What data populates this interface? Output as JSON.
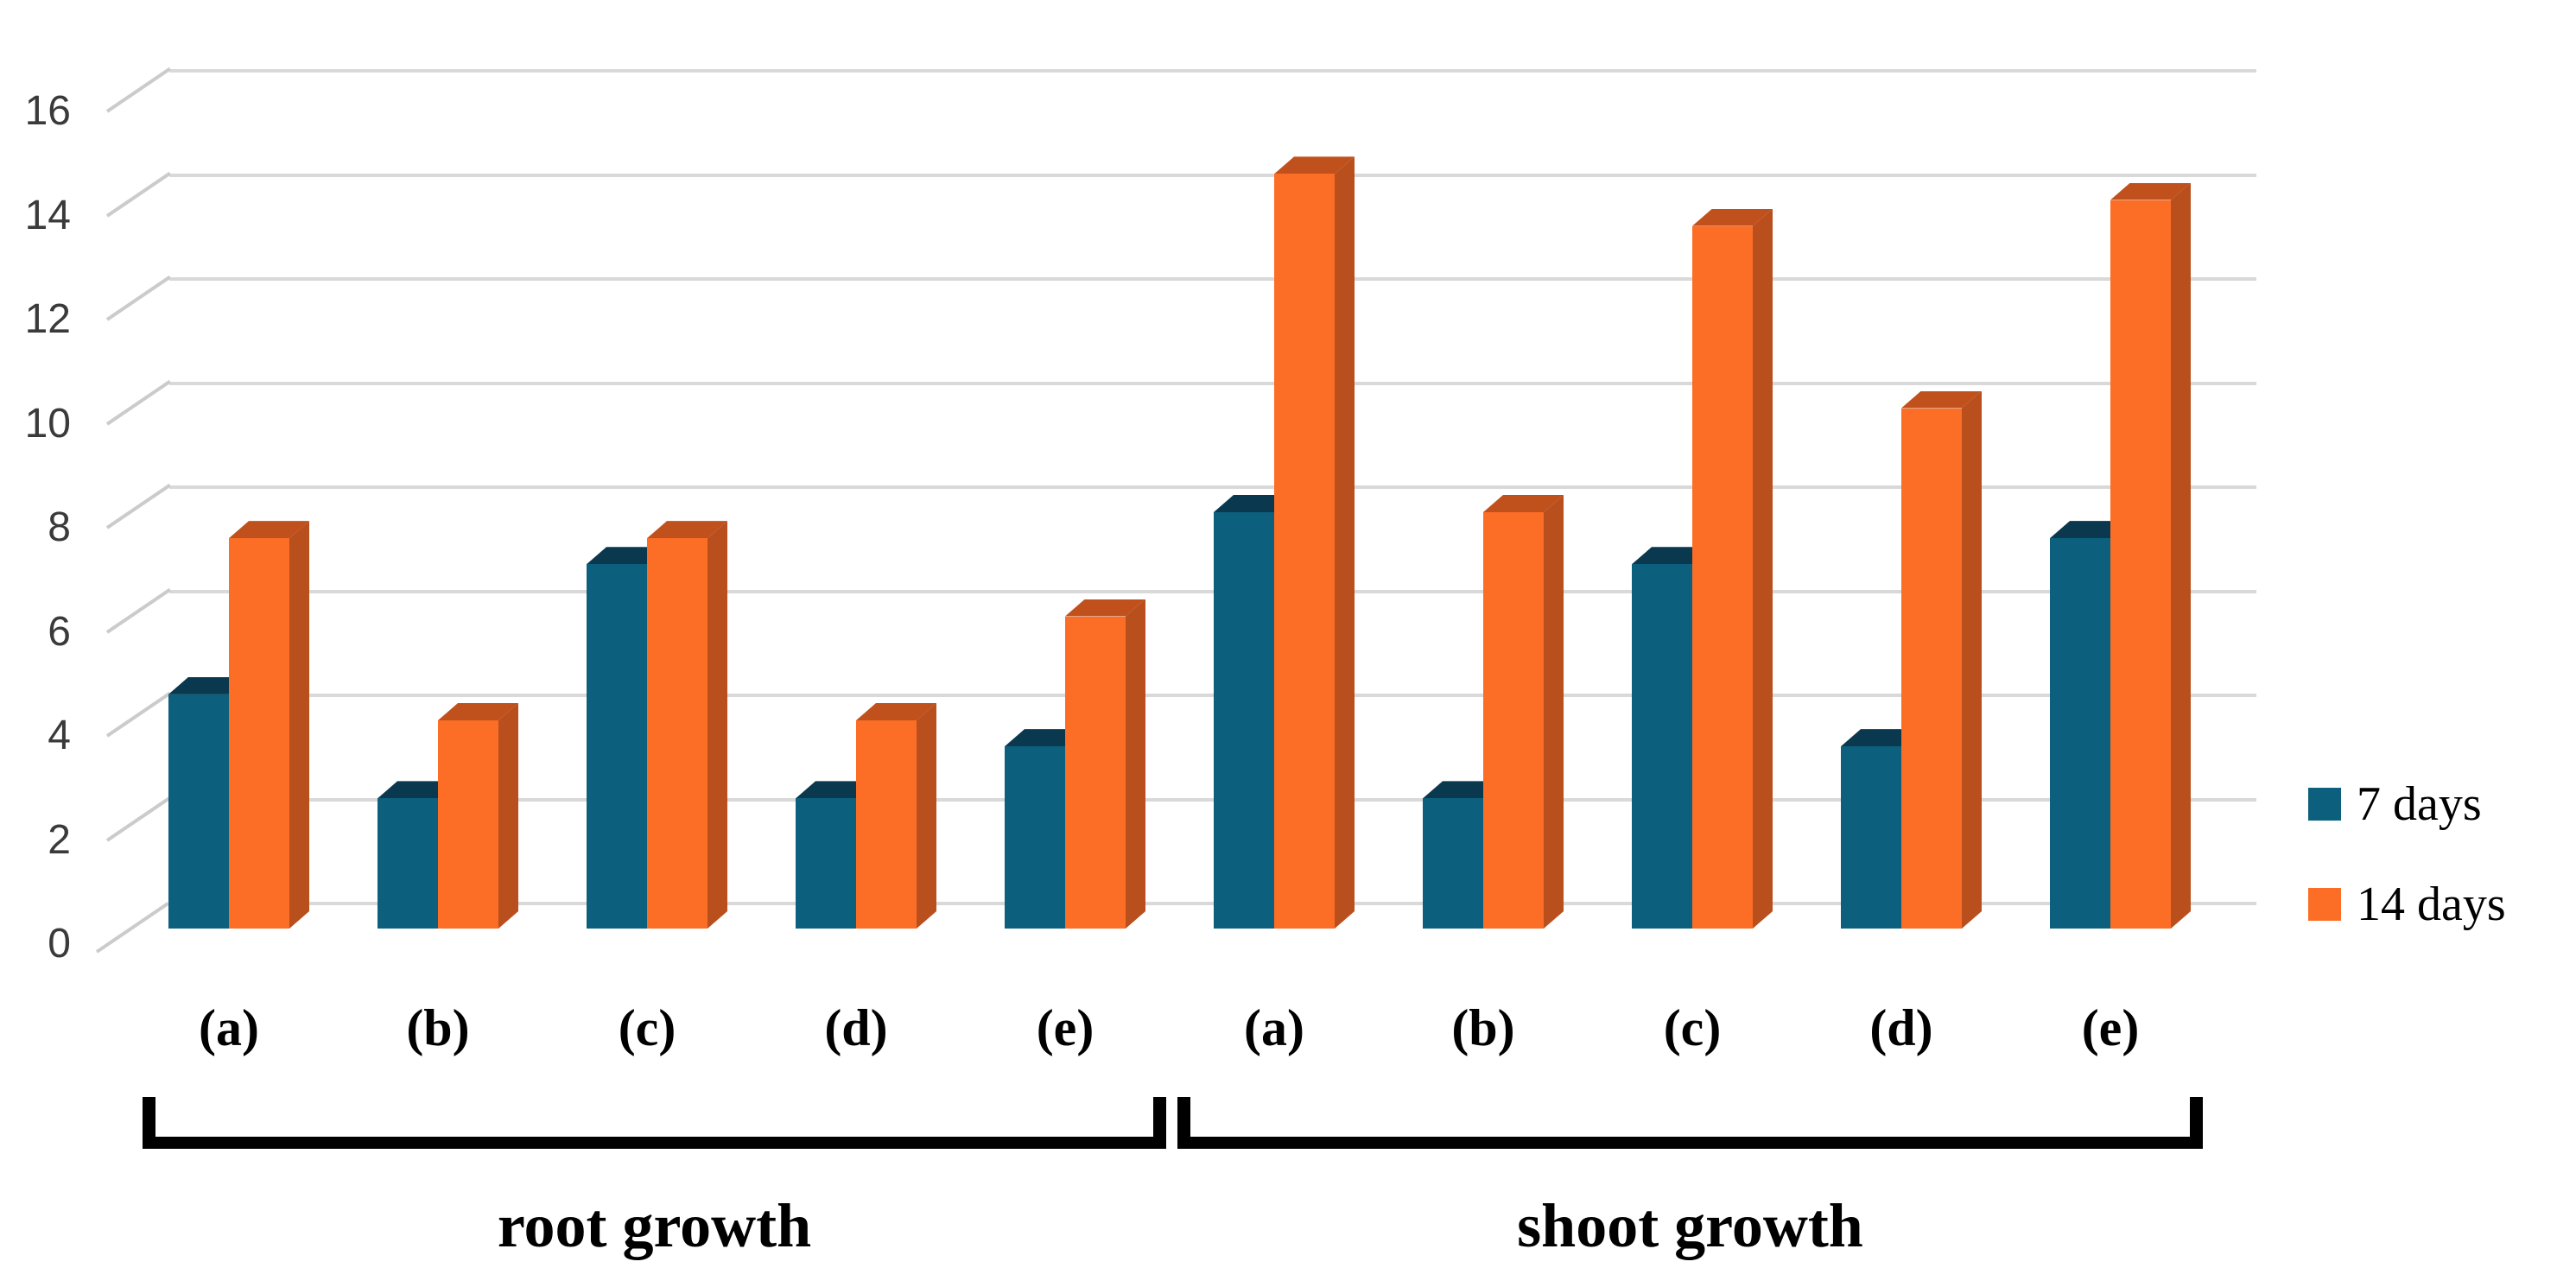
{
  "figure": {
    "background": "#ffffff",
    "section_labels": {
      "root": "root growth",
      "shoot": "shoot growth"
    },
    "legend": [
      {
        "label": "7 days",
        "color": "#0C607D"
      },
      {
        "label": "14 days",
        "color": "#FC6D26"
      }
    ]
  },
  "chart_data": {
    "type": "bar",
    "style": "3d-clustered-column",
    "title": "",
    "xlabel": "",
    "ylabel": "",
    "ylim": [
      0,
      16
    ],
    "yticks": [
      0,
      2,
      4,
      6,
      8,
      10,
      12,
      14,
      16
    ],
    "grid": true,
    "legend_position": "right",
    "categories": [
      "(a)",
      "(b)",
      "(c)",
      "(d)",
      "(e)",
      "(a)",
      "(b)",
      "(c)",
      "(d)",
      "(e)"
    ],
    "groups": [
      {
        "section": "root growth",
        "categories": [
          "(a)",
          "(b)",
          "(c)",
          "(d)",
          "(e)"
        ]
      },
      {
        "section": "shoot growth",
        "categories": [
          "(a)",
          "(b)",
          "(c)",
          "(d)",
          "(e)"
        ]
      }
    ],
    "series": [
      {
        "name": "7 days",
        "colors": {
          "front": "#0C607D",
          "top": "#0A384F",
          "side": "#0B4B63"
        },
        "values": [
          4.5,
          2.5,
          7,
          2.5,
          3.5,
          8,
          2.5,
          7,
          3.5,
          7.5
        ]
      },
      {
        "name": "14 days",
        "colors": {
          "front": "#FC6D26",
          "top": "#C0511C",
          "side": "#B94F1D"
        },
        "values": [
          7.5,
          4,
          7.5,
          4,
          6,
          14.5,
          8,
          13.5,
          10,
          14
        ]
      }
    ],
    "colors": {
      "gridline": "#D9D9D9",
      "axis_text": "#3A3A3A",
      "bracket": "#000000",
      "text": "#000000"
    }
  }
}
